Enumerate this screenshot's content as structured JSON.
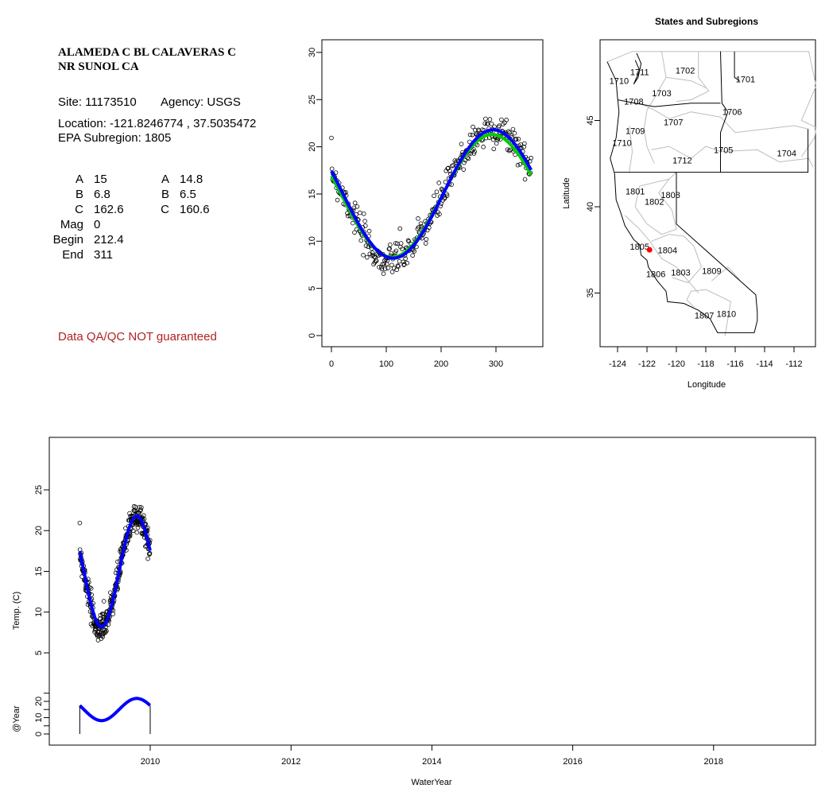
{
  "info": {
    "station_name_line1": "ALAMEDA C BL CALAVERAS C",
    "station_name_line2": "NR SUNOL CA",
    "site": "Site: 11173510",
    "agency": "Agency: USGS",
    "location": "Location: -121.8246774 , 37.5035472",
    "epa_subregion": "EPA Subregion: 1805",
    "params_left": [
      {
        "label": "A",
        "value": "15"
      },
      {
        "label": "B",
        "value": "6.8"
      },
      {
        "label": "C",
        "value": "162.6"
      },
      {
        "label": "Mag",
        "value": "0"
      },
      {
        "label": "Begin",
        "value": "212.4"
      },
      {
        "label": "End",
        "value": "311"
      }
    ],
    "params_right": [
      {
        "label": "A",
        "value": "14.8"
      },
      {
        "label": "B",
        "value": "6.5"
      },
      {
        "label": "C",
        "value": "160.6"
      }
    ],
    "disclaimer": "Data QA/QC NOT guaranteed",
    "disclaimer_color": "#b22222"
  },
  "chart_data": [
    {
      "type": "scatter",
      "title": "",
      "xlabel": "",
      "ylabel": "",
      "xlim": [
        0,
        365
      ],
      "ylim": [
        0,
        30
      ],
      "x_ticks": [
        "0",
        "100",
        "200",
        "300"
      ],
      "y_ticks": [
        "0",
        "5",
        "10",
        "15",
        "20",
        "25",
        "30"
      ],
      "series": [
        {
          "kind": "observations",
          "marker": "open-circle",
          "color": "#000000",
          "n_days": 365
        },
        {
          "kind": "fit",
          "A": 14.8,
          "B": 6.5,
          "C": 160.6,
          "color": "#00cc00"
        },
        {
          "kind": "fit",
          "A": 15,
          "B": 6.8,
          "C": 162.6,
          "color": "#0000ff"
        }
      ]
    },
    {
      "type": "map",
      "title": "States and Subregions",
      "xlabel": "Longitude",
      "ylabel": "Latitude",
      "x_ticks": [
        "-124",
        "-122",
        "-120",
        "-118",
        "-116",
        "-114",
        "-112"
      ],
      "y_ticks": [
        "35",
        "40",
        "45"
      ],
      "site_point": {
        "lon": -121.8246774,
        "lat": 37.5035472,
        "color": "#ff0000"
      },
      "subregion_labels": [
        {
          "text": "1711",
          "lon": -122.5,
          "lat": 47.8
        },
        {
          "text": "1702",
          "lon": -119.4,
          "lat": 47.9
        },
        {
          "text": "1701",
          "lon": -115.3,
          "lat": 47.4
        },
        {
          "text": "1710",
          "lon": -123.9,
          "lat": 47.3
        },
        {
          "text": "1703",
          "lon": -121.0,
          "lat": 46.6
        },
        {
          "text": "1708",
          "lon": -122.9,
          "lat": 46.1
        },
        {
          "text": "1706",
          "lon": -116.2,
          "lat": 45.5
        },
        {
          "text": "1707",
          "lon": -120.2,
          "lat": 44.9
        },
        {
          "text": "1709",
          "lon": -122.8,
          "lat": 44.4
        },
        {
          "text": "1710",
          "lon": -123.7,
          "lat": 43.7
        },
        {
          "text": "1705",
          "lon": -116.8,
          "lat": 43.3
        },
        {
          "text": "1704",
          "lon": -112.5,
          "lat": 43.1
        },
        {
          "text": "1712",
          "lon": -119.6,
          "lat": 42.7
        },
        {
          "text": "1801",
          "lon": -122.8,
          "lat": 40.9
        },
        {
          "text": "1808",
          "lon": -120.4,
          "lat": 40.7
        },
        {
          "text": "1802",
          "lon": -121.5,
          "lat": 40.3
        },
        {
          "text": "1805",
          "lon": -122.5,
          "lat": 37.7
        },
        {
          "text": "1804",
          "lon": -120.6,
          "lat": 37.5
        },
        {
          "text": "1806",
          "lon": -121.4,
          "lat": 36.1
        },
        {
          "text": "1803",
          "lon": -119.7,
          "lat": 36.2
        },
        {
          "text": "1809",
          "lon": -117.6,
          "lat": 36.3
        },
        {
          "text": "1807",
          "lon": -118.1,
          "lat": 33.7
        },
        {
          "text": "1810",
          "lon": -116.6,
          "lat": 33.8
        }
      ]
    },
    {
      "type": "scatter",
      "title": "",
      "xlabel": "WaterYear",
      "ylabel": "Temp. (C)",
      "ylabel_lower": "@Year",
      "xlim": [
        2008.9,
        2019.4
      ],
      "x_ticks": [
        "2010",
        "2012",
        "2014",
        "2016",
        "2018"
      ],
      "y_ticks": [
        "5",
        "10",
        "15",
        "20",
        "25"
      ],
      "y_ticks_lower": [
        "0",
        "10",
        "20"
      ],
      "observation_span": [
        2009,
        2010
      ],
      "series": [
        {
          "kind": "observations",
          "marker": "open-circle",
          "color": "#000000"
        },
        {
          "kind": "fit",
          "A": 15,
          "B": 6.8,
          "C": 162.6,
          "color": "#0000ff"
        }
      ]
    }
  ]
}
